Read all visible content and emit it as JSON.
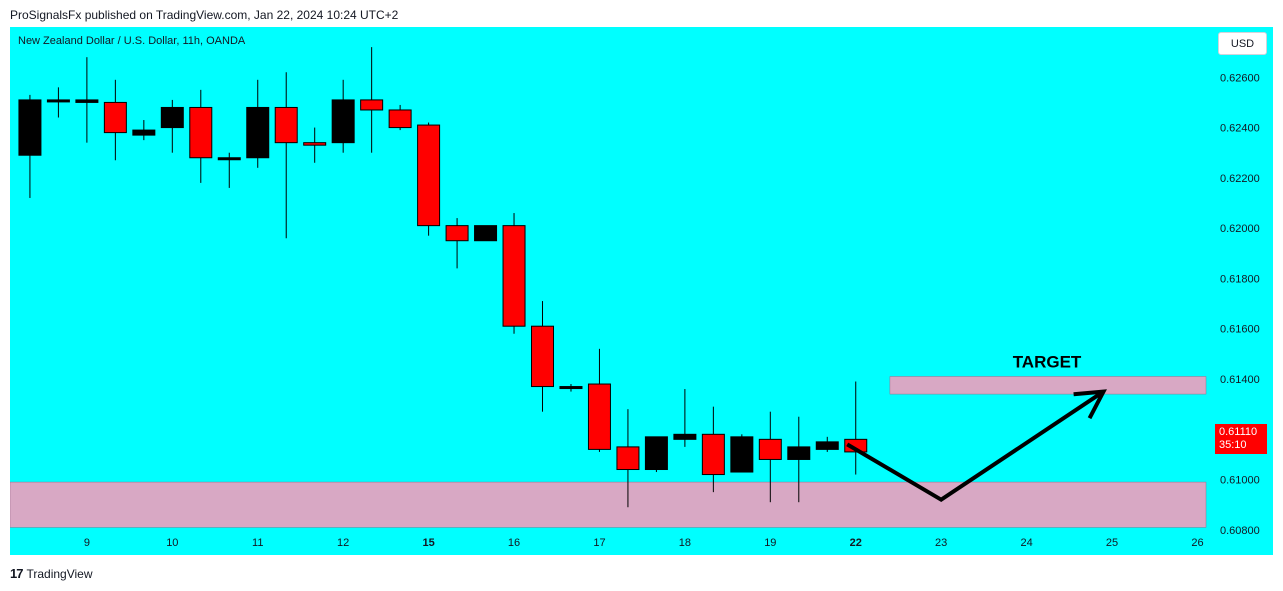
{
  "header": {
    "publisher_line": "ProSignalsFx published on TradingView.com, Jan 22, 2024 10:24 UTC+2"
  },
  "chart_header": {
    "symbol_line": "New Zealand Dollar / U.S. Dollar, 11h, OANDA",
    "currency_button": "USD"
  },
  "current_price": {
    "value": "0.61110",
    "countdown": "35:10"
  },
  "footer": {
    "brand_icon": "tv-logo-icon",
    "brand": "TradingView"
  },
  "colors": {
    "background": "#00ffff",
    "up_candle": "#000000",
    "down_candle": "#ff0000",
    "zone": "#d8a8c4",
    "arrow": "#000000"
  },
  "chart_data": {
    "type": "candlestick",
    "title": "New Zealand Dollar / U.S. Dollar, 11h, OANDA",
    "y_axis": {
      "side": "right",
      "ylim": [
        0.607,
        0.628
      ],
      "ticks": [
        "0.62600",
        "0.62400",
        "0.62200",
        "0.62000",
        "0.61800",
        "0.61600",
        "0.61400",
        "0.61200",
        "0.61000",
        "0.60800"
      ],
      "tick_values": [
        0.626,
        0.624,
        0.622,
        0.62,
        0.618,
        0.616,
        0.614,
        0.612,
        0.61,
        0.608
      ]
    },
    "x_axis": {
      "labels": [
        {
          "t": "9",
          "x": 2,
          "bold": false
        },
        {
          "t": "10",
          "x": 5,
          "bold": false
        },
        {
          "t": "11",
          "x": 8,
          "bold": false
        },
        {
          "t": "12",
          "x": 11,
          "bold": false
        },
        {
          "t": "15",
          "x": 14,
          "bold": true
        },
        {
          "t": "16",
          "x": 17,
          "bold": false
        },
        {
          "t": "17",
          "x": 20,
          "bold": false
        },
        {
          "t": "18",
          "x": 23,
          "bold": false
        },
        {
          "t": "19",
          "x": 26,
          "bold": false
        },
        {
          "t": "22",
          "x": 29,
          "bold": true
        },
        {
          "t": "23",
          "x": 32,
          "bold": false
        },
        {
          "t": "24",
          "x": 35,
          "bold": false
        },
        {
          "t": "25",
          "x": 38,
          "bold": false
        },
        {
          "t": "26",
          "x": 41,
          "bold": false
        }
      ],
      "xlim": [
        -0.7,
        41.3
      ]
    },
    "candles": [
      {
        "o": 0.6229,
        "h": 0.6253,
        "l": 0.6212,
        "c": 0.6251
      },
      {
        "o": 0.6251,
        "h": 0.6256,
        "l": 0.6244,
        "c": 0.6251
      },
      {
        "o": 0.625,
        "h": 0.6268,
        "l": 0.6234,
        "c": 0.6251
      },
      {
        "o": 0.625,
        "h": 0.6259,
        "l": 0.6227,
        "c": 0.6238
      },
      {
        "o": 0.6237,
        "h": 0.6243,
        "l": 0.6235,
        "c": 0.6239
      },
      {
        "o": 0.624,
        "h": 0.6251,
        "l": 0.623,
        "c": 0.6248
      },
      {
        "o": 0.6248,
        "h": 0.6255,
        "l": 0.6218,
        "c": 0.6228
      },
      {
        "o": 0.6228,
        "h": 0.623,
        "l": 0.6216,
        "c": 0.6228
      },
      {
        "o": 0.6228,
        "h": 0.6259,
        "l": 0.6224,
        "c": 0.6248
      },
      {
        "o": 0.6248,
        "h": 0.6262,
        "l": 0.6196,
        "c": 0.6234
      },
      {
        "o": 0.6234,
        "h": 0.624,
        "l": 0.6226,
        "c": 0.6233
      },
      {
        "o": 0.6234,
        "h": 0.6259,
        "l": 0.623,
        "c": 0.6251
      },
      {
        "o": 0.6251,
        "h": 0.6272,
        "l": 0.623,
        "c": 0.6247
      },
      {
        "o": 0.6247,
        "h": 0.6249,
        "l": 0.6239,
        "c": 0.624
      },
      {
        "o": 0.6241,
        "h": 0.6242,
        "l": 0.6197,
        "c": 0.6201
      },
      {
        "o": 0.6201,
        "h": 0.6204,
        "l": 0.6184,
        "c": 0.6195
      },
      {
        "o": 0.6195,
        "h": 0.62,
        "l": 0.6195,
        "c": 0.6201
      },
      {
        "o": 0.6201,
        "h": 0.6206,
        "l": 0.6158,
        "c": 0.6161
      },
      {
        "o": 0.6161,
        "h": 0.6171,
        "l": 0.6127,
        "c": 0.6137
      },
      {
        "o": 0.6137,
        "h": 0.6138,
        "l": 0.6135,
        "c": 0.6137
      },
      {
        "o": 0.6138,
        "h": 0.6152,
        "l": 0.6111,
        "c": 0.6112
      },
      {
        "o": 0.6113,
        "h": 0.6128,
        "l": 0.6089,
        "c": 0.6104
      },
      {
        "o": 0.6104,
        "h": 0.6117,
        "l": 0.6103,
        "c": 0.6117
      },
      {
        "o": 0.6116,
        "h": 0.6136,
        "l": 0.6113,
        "c": 0.6118
      },
      {
        "o": 0.6118,
        "h": 0.6129,
        "l": 0.6095,
        "c": 0.6102
      },
      {
        "o": 0.6103,
        "h": 0.6118,
        "l": 0.6103,
        "c": 0.6117
      },
      {
        "o": 0.6116,
        "h": 0.6127,
        "l": 0.6091,
        "c": 0.6108
      },
      {
        "o": 0.6108,
        "h": 0.6125,
        "l": 0.6091,
        "c": 0.6113
      },
      {
        "o": 0.6112,
        "h": 0.6117,
        "l": 0.6111,
        "c": 0.6115
      },
      {
        "o": 0.6116,
        "h": 0.6139,
        "l": 0.6102,
        "c": 0.6111
      }
    ],
    "support_zone": {
      "from_x": -0.7,
      "to_x": 41.3,
      "low": 0.6081,
      "high": 0.6099
    },
    "target_zone": {
      "from_x": 30.2,
      "to_x": 41.3,
      "low": 0.6134,
      "high": 0.6141,
      "label": "TARGET"
    },
    "projection": [
      {
        "x": 28.7,
        "y": 0.6114
      },
      {
        "x": 32.0,
        "y": 0.6092
      },
      {
        "x": 37.7,
        "y": 0.6135
      }
    ],
    "grid": false,
    "legend": "none"
  }
}
